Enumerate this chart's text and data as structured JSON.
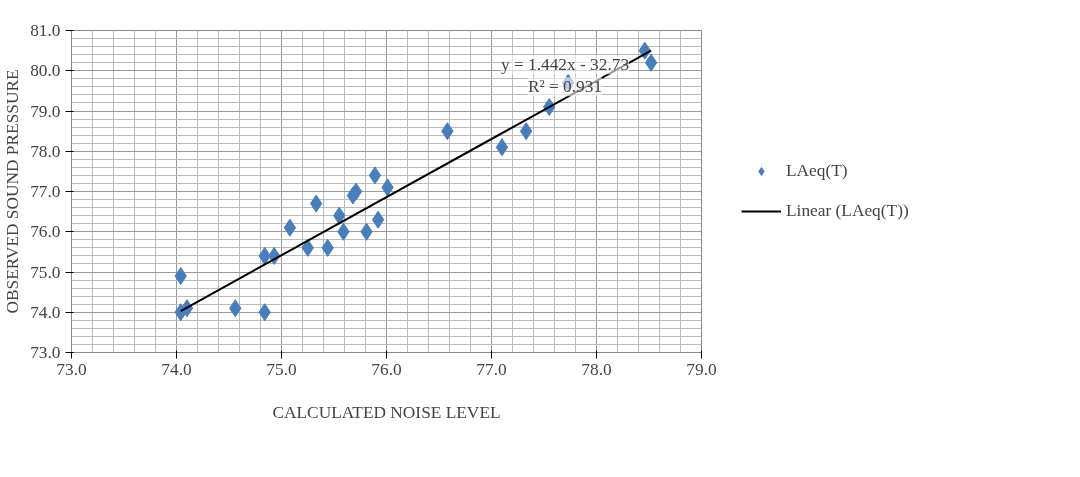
{
  "chart_data": {
    "type": "scatter",
    "xlabel": "CALCULATED NOISE LEVEL",
    "ylabel": "OBSERVED SOUND PRESSURE",
    "xlim": [
      73,
      79
    ],
    "ylim": [
      73,
      81
    ],
    "xticks": [
      {
        "value": 73,
        "label": "73.0"
      },
      {
        "value": 74,
        "label": "74.0"
      },
      {
        "value": 75,
        "label": "75.0"
      },
      {
        "value": 76,
        "label": "76.0"
      },
      {
        "value": 77,
        "label": "77.0"
      },
      {
        "value": 78,
        "label": "78.0"
      },
      {
        "value": 79,
        "label": "79.0"
      }
    ],
    "yticks": [
      {
        "value": 73,
        "label": "73.0"
      },
      {
        "value": 74,
        "label": "74.0"
      },
      {
        "value": 75,
        "label": "75.0"
      },
      {
        "value": 76,
        "label": "76.0"
      },
      {
        "value": 77,
        "label": "77.0"
      },
      {
        "value": 78,
        "label": "78.0"
      },
      {
        "value": 79,
        "label": "79.0"
      },
      {
        "value": 80,
        "label": "80.0"
      },
      {
        "value": 81,
        "label": "81.0"
      }
    ],
    "grid": true,
    "legend": "right",
    "marker": "diamond",
    "annotations": [
      "y = 1.442x - 32.73",
      "R² = 0.931"
    ],
    "series": [
      {
        "name": "LAeq(T)",
        "color": "#4a7ebb",
        "x": [
          74.04,
          74.04,
          74.1,
          74.56,
          74.84,
          74.84,
          74.93,
          75.08,
          75.25,
          75.33,
          75.44,
          75.55,
          75.59,
          75.68,
          75.71,
          75.81,
          75.89,
          75.92,
          76.01,
          76.58,
          77.1,
          77.33,
          77.55,
          77.73,
          78.46,
          78.52
        ],
        "values": [
          74.9,
          74.0,
          74.1,
          74.1,
          74.0,
          75.4,
          75.4,
          76.1,
          75.6,
          76.7,
          75.6,
          76.4,
          76.0,
          76.9,
          77.0,
          76.0,
          77.4,
          76.3,
          77.1,
          78.5,
          78.1,
          78.5,
          79.1,
          79.7,
          80.5,
          80.2
        ]
      },
      {
        "name": "Linear (LAeq(T))",
        "type": "line",
        "color": "#000000",
        "marker": "none",
        "x": [
          74.04,
          78.52
        ],
        "values": [
          74.03,
          80.5
        ]
      }
    ]
  }
}
